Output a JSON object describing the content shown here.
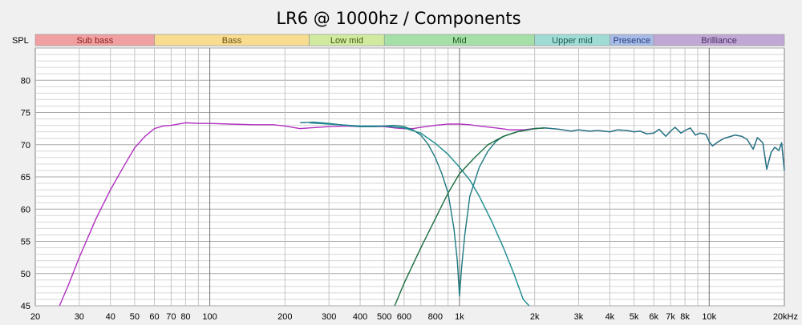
{
  "chart_data": {
    "type": "line",
    "title": "LR6 @ 1000hz / Components",
    "ylabel": "SPL",
    "xlabel": "",
    "x_scale": "log",
    "xlim": [
      20,
      20000
    ],
    "ylim": [
      45,
      85
    ],
    "y_ticks": [
      45,
      50,
      55,
      60,
      65,
      70,
      75,
      80
    ],
    "y_tick_labels": [
      "45",
      "50",
      "55",
      "60",
      "65",
      "70",
      "75",
      "80"
    ],
    "x_ticks": [
      20,
      30,
      40,
      50,
      60,
      70,
      80,
      100,
      200,
      300,
      400,
      500,
      600,
      800,
      1000,
      2000,
      3000,
      4000,
      5000,
      6000,
      7000,
      8000,
      10000,
      20000
    ],
    "x_tick_labels": [
      "20",
      "30",
      "40",
      "50",
      "60",
      "70",
      "80",
      "100",
      "200",
      "300",
      "400",
      "500",
      "600",
      "800",
      "1k",
      "2k",
      "3k",
      "4k",
      "5k",
      "6k",
      "7k",
      "8k",
      "10k",
      "20kHz"
    ],
    "grid": true,
    "bands": [
      {
        "label": "Sub bass",
        "from": 20,
        "to": 60,
        "color": "#f0a0a0",
        "text_color": "#8b2020"
      },
      {
        "label": "Bass",
        "from": 60,
        "to": 250,
        "color": "#f8dc90",
        "text_color": "#6a5010"
      },
      {
        "label": "Low mid",
        "from": 250,
        "to": 500,
        "color": "#d2eaa0",
        "text_color": "#3c5a10"
      },
      {
        "label": "Mid",
        "from": 500,
        "to": 2000,
        "color": "#a4e0a8",
        "text_color": "#1e5a24"
      },
      {
        "label": "Upper mid",
        "from": 2000,
        "to": 4000,
        "color": "#a0dcd4",
        "text_color": "#1a5a54"
      },
      {
        "label": "Presence",
        "from": 4000,
        "to": 6000,
        "color": "#a8bce6",
        "text_color": "#243c80"
      },
      {
        "label": "Brilliance",
        "from": 6000,
        "to": 20000,
        "color": "#c0a8d4",
        "text_color": "#4a2a66"
      }
    ],
    "series": [
      {
        "color": "#b030c0",
        "points": [
          [
            25,
            45
          ],
          [
            27,
            48
          ],
          [
            30,
            52.5
          ],
          [
            35,
            58.5
          ],
          [
            40,
            63
          ],
          [
            45,
            66.5
          ],
          [
            50,
            69.5
          ],
          [
            55,
            71.3
          ],
          [
            60,
            72.5
          ],
          [
            65,
            72.9
          ],
          [
            70,
            73
          ],
          [
            75,
            73.2
          ],
          [
            80,
            73.4
          ],
          [
            90,
            73.3
          ],
          [
            100,
            73.3
          ],
          [
            120,
            73.2
          ],
          [
            150,
            73.1
          ],
          [
            180,
            73.1
          ],
          [
            200,
            72.9
          ],
          [
            230,
            72.5
          ],
          [
            250,
            72.6
          ],
          [
            300,
            72.8
          ],
          [
            350,
            72.9
          ],
          [
            400,
            72.8
          ],
          [
            450,
            72.8
          ],
          [
            500,
            72.8
          ],
          [
            550,
            72.6
          ],
          [
            600,
            72.5
          ],
          [
            650,
            72.5
          ],
          [
            700,
            72.7
          ],
          [
            800,
            73
          ],
          [
            900,
            73.2
          ],
          [
            1000,
            73.2
          ],
          [
            1100,
            73.1
          ],
          [
            1200,
            72.9
          ],
          [
            1400,
            72.6
          ],
          [
            1600,
            72.3
          ],
          [
            1800,
            72.3
          ],
          [
            2000,
            72.5
          ],
          [
            2200,
            72.6
          ],
          [
            2500,
            72.4
          ],
          [
            2800,
            72.1
          ],
          [
            3000,
            72.3
          ],
          [
            3300,
            72.1
          ],
          [
            3600,
            72.2
          ],
          [
            4000,
            72
          ],
          [
            4300,
            72.3
          ],
          [
            4700,
            72.2
          ],
          [
            5000,
            72
          ],
          [
            5300,
            72.1
          ],
          [
            5600,
            71.7
          ],
          [
            6000,
            71.8
          ],
          [
            6300,
            72.4
          ],
          [
            6700,
            71.3
          ],
          [
            7000,
            72.1
          ],
          [
            7300,
            72.7
          ],
          [
            7700,
            71.8
          ],
          [
            8000,
            72.2
          ],
          [
            8400,
            72.6
          ],
          [
            8800,
            71.5
          ],
          [
            9200,
            71.8
          ],
          [
            9700,
            71.6
          ],
          [
            10000,
            70.5
          ],
          [
            10300,
            69.8
          ],
          [
            10800,
            70.4
          ],
          [
            11500,
            71
          ],
          [
            12000,
            71.2
          ],
          [
            12700,
            71.5
          ],
          [
            13500,
            71.3
          ],
          [
            14200,
            70.8
          ],
          [
            15000,
            69.3
          ],
          [
            15600,
            71.1
          ],
          [
            16400,
            70.3
          ],
          [
            17000,
            66.2
          ],
          [
            17700,
            68.8
          ],
          [
            18300,
            69.6
          ],
          [
            19000,
            69.1
          ],
          [
            19500,
            70.3
          ],
          [
            20000,
            66
          ]
        ]
      },
      {
        "color": "#1e7a80",
        "points": [
          [
            230,
            73.4
          ],
          [
            260,
            73.5
          ],
          [
            300,
            73.3
          ],
          [
            350,
            73
          ],
          [
            400,
            72.8
          ],
          [
            450,
            72.8
          ],
          [
            500,
            72.9
          ],
          [
            550,
            73
          ],
          [
            600,
            72.8
          ],
          [
            650,
            72.3
          ],
          [
            700,
            71.5
          ],
          [
            750,
            70
          ],
          [
            800,
            68
          ],
          [
            850,
            65.5
          ],
          [
            900,
            62.5
          ],
          [
            950,
            57
          ],
          [
            980,
            52
          ],
          [
            1000,
            46.5
          ],
          [
            1020,
            51
          ],
          [
            1050,
            56
          ],
          [
            1100,
            62
          ],
          [
            1200,
            66.5
          ],
          [
            1300,
            69
          ],
          [
            1400,
            70.5
          ],
          [
            1500,
            71.3
          ],
          [
            1700,
            72
          ],
          [
            2000,
            72.5
          ],
          [
            2200,
            72.6
          ],
          [
            2500,
            72.4
          ],
          [
            2800,
            72.1
          ],
          [
            3000,
            72.3
          ],
          [
            3300,
            72.1
          ],
          [
            3600,
            72.2
          ],
          [
            4000,
            72
          ],
          [
            4300,
            72.3
          ],
          [
            4700,
            72.2
          ],
          [
            5000,
            72
          ],
          [
            5300,
            72.1
          ],
          [
            5600,
            71.7
          ],
          [
            6000,
            71.8
          ],
          [
            6300,
            72.4
          ],
          [
            6700,
            71.3
          ],
          [
            7000,
            72.1
          ],
          [
            7300,
            72.7
          ],
          [
            7700,
            71.8
          ],
          [
            8000,
            72.2
          ],
          [
            8400,
            72.6
          ],
          [
            8800,
            71.5
          ],
          [
            9200,
            71.8
          ],
          [
            9700,
            71.6
          ],
          [
            10000,
            70.5
          ],
          [
            10300,
            69.8
          ],
          [
            10800,
            70.4
          ],
          [
            11500,
            71
          ],
          [
            12000,
            71.2
          ],
          [
            12700,
            71.5
          ],
          [
            13500,
            71.3
          ],
          [
            14200,
            70.8
          ],
          [
            15000,
            69.3
          ],
          [
            15600,
            71.1
          ],
          [
            16400,
            70.3
          ],
          [
            17000,
            66.2
          ],
          [
            17700,
            68.8
          ],
          [
            18300,
            69.6
          ],
          [
            19000,
            69.1
          ],
          [
            19500,
            70.3
          ],
          [
            20000,
            66
          ]
        ]
      },
      {
        "color": "#1a8a90",
        "points": [
          [
            250,
            73.4
          ],
          [
            300,
            73.2
          ],
          [
            400,
            72.9
          ],
          [
            500,
            72.9
          ],
          [
            600,
            72.6
          ],
          [
            700,
            71.8
          ],
          [
            800,
            70.2
          ],
          [
            900,
            68.5
          ],
          [
            1000,
            66.5
          ],
          [
            1100,
            64.5
          ],
          [
            1200,
            62
          ],
          [
            1350,
            58
          ],
          [
            1500,
            54
          ],
          [
            1650,
            50
          ],
          [
            1800,
            46
          ],
          [
            1900,
            45
          ]
        ]
      },
      {
        "color": "#1a6e40",
        "points": [
          [
            550,
            45
          ],
          [
            600,
            48.5
          ],
          [
            700,
            54
          ],
          [
            800,
            58.5
          ],
          [
            900,
            62.5
          ],
          [
            1000,
            65.5
          ],
          [
            1150,
            68
          ],
          [
            1300,
            70
          ],
          [
            1500,
            71.3
          ],
          [
            1700,
            72
          ],
          [
            2000,
            72.5
          ],
          [
            2200,
            72.6
          ]
        ]
      }
    ]
  }
}
